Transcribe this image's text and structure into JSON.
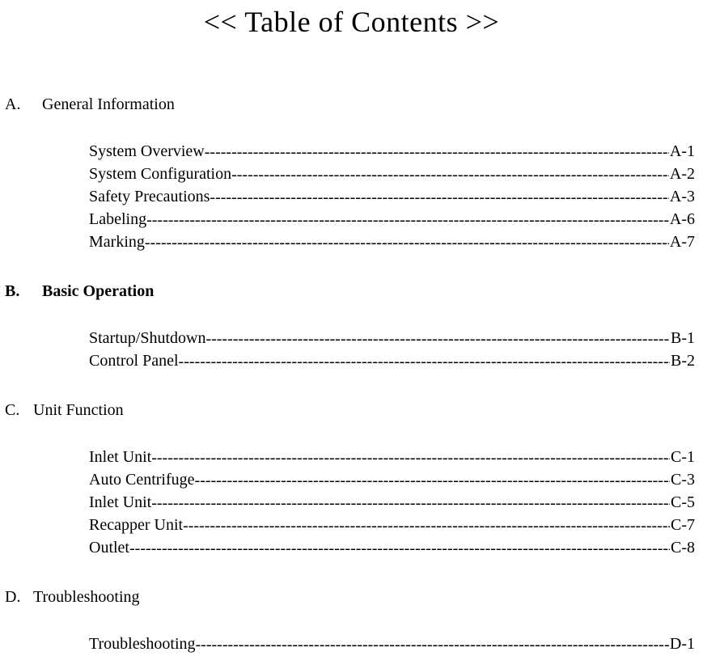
{
  "page": {
    "title": "<< Table of Contents >>",
    "title_fontsize": 36,
    "body_fontsize": 20,
    "font_family": "Times New Roman",
    "background_color": "#ffffff",
    "text_color": "#000000"
  },
  "sections": [
    {
      "letter": "A.",
      "title": "General Information",
      "bold": false,
      "letter_wide": true,
      "entries": [
        {
          "label": "System Overview ",
          "page": "A-1"
        },
        {
          "label": "System Configuration",
          "page": "A-2"
        },
        {
          "label": "Safety Precautions",
          "page": "A-3"
        },
        {
          "label": "Labeling",
          "page": "A-6"
        },
        {
          "label": "Marking",
          "page": "A-7"
        }
      ]
    },
    {
      "letter": "B.",
      "title": "Basic Operation",
      "bold": true,
      "letter_wide": true,
      "entries": [
        {
          "label": "Startup/Shutdown ",
          "page": "B-1"
        },
        {
          "label": "Control Panel  ",
          "page": " B-2"
        }
      ]
    },
    {
      "letter": "C.",
      "title": "Unit Function",
      "bold": false,
      "letter_wide": false,
      "entries": [
        {
          "label": "Inlet Unit",
          "page": " C-1"
        },
        {
          "label": "Auto Centrifuge",
          "page": " C-3"
        },
        {
          "label": "Inlet Unit ",
          "page": " C-5"
        },
        {
          "label": "Recapper Unit",
          "page": " C-7"
        },
        {
          "label": "Outlet",
          "page": " C-8"
        }
      ]
    },
    {
      "letter": "D.",
      "title": "Troubleshooting",
      "bold": false,
      "letter_wide": false,
      "entries": [
        {
          "label": "Troubleshooting",
          "page": " D-1"
        }
      ]
    }
  ]
}
